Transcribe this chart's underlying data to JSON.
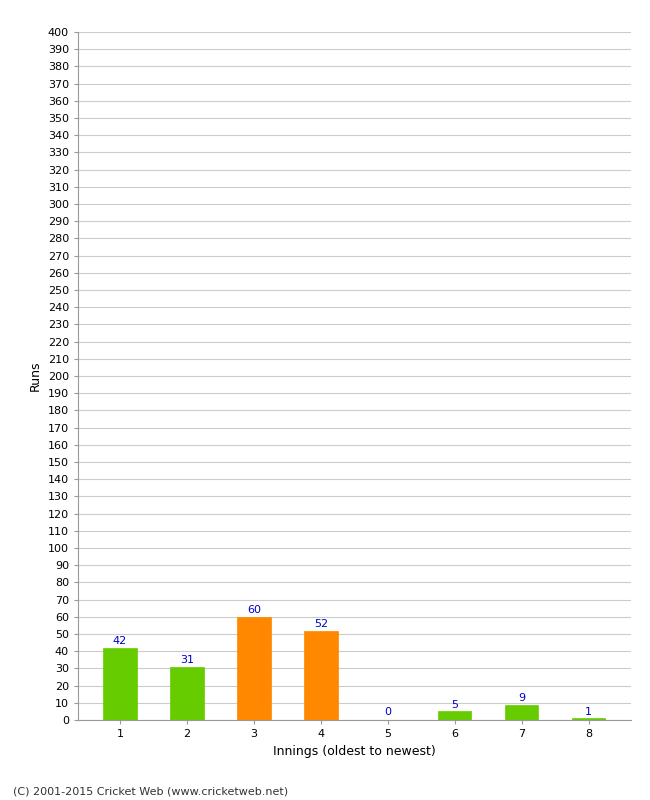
{
  "categories": [
    "1",
    "2",
    "3",
    "4",
    "5",
    "6",
    "7",
    "8"
  ],
  "values": [
    42,
    31,
    60,
    52,
    0,
    5,
    9,
    1
  ],
  "bar_colors": [
    "#66cc00",
    "#66cc00",
    "#ff8800",
    "#ff8800",
    "#66cc00",
    "#66cc00",
    "#66cc00",
    "#66cc00"
  ],
  "xlabel": "Innings (oldest to newest)",
  "ylabel": "Runs",
  "ylim": [
    0,
    400
  ],
  "ytick_step": 10,
  "label_color": "#0000cc",
  "background_color": "#ffffff",
  "grid_color": "#cccccc",
  "footer": "(C) 2001-2015 Cricket Web (www.cricketweb.net)",
  "bar_width": 0.5,
  "tick_fontsize": 8,
  "label_fontsize": 9,
  "footer_fontsize": 8
}
